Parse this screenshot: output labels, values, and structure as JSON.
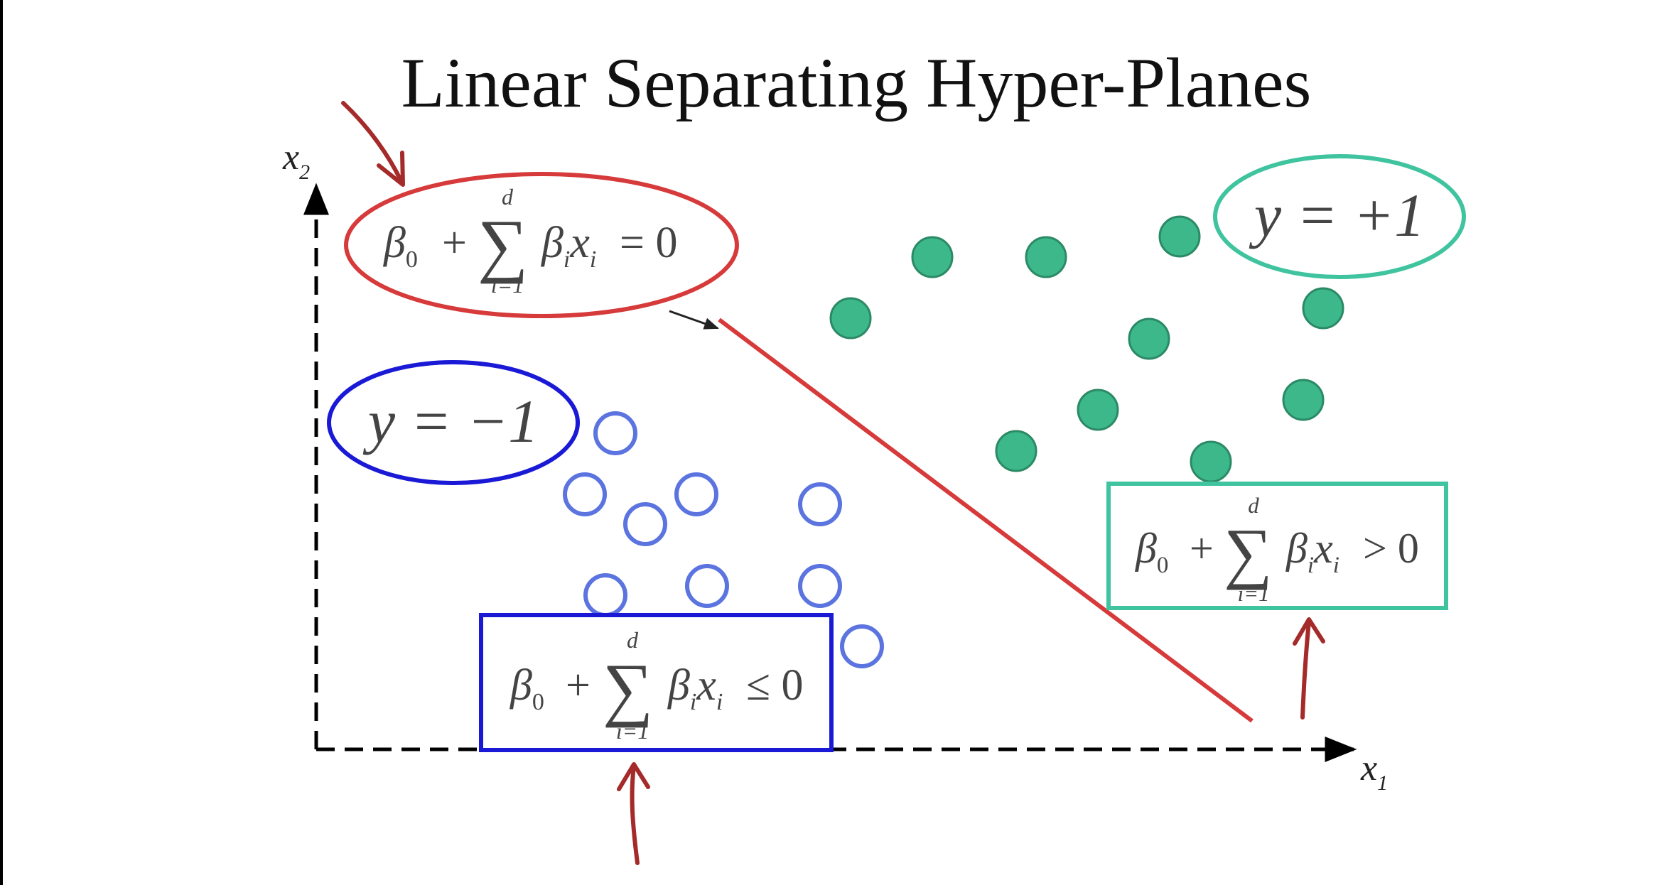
{
  "slide": {
    "title": "Linear Separating Hyper-Planes"
  },
  "axes": {
    "x_label_base": "x",
    "x_label_sub": "1",
    "y_label_base": "x",
    "y_label_sub": "2"
  },
  "hyperplane": {
    "beta": "β",
    "beta_sub0": "0",
    "plus": "+",
    "sum_symbol": "∑",
    "sum_upper": "d",
    "sum_lower": "i=1",
    "beta_i_sub": "i",
    "x": "x",
    "x_sub": "i",
    "relation": "= 0",
    "color": "#d63a3a"
  },
  "class_pos": {
    "label": "y = +1",
    "condition_relation": "> 0",
    "color": "#40c49f",
    "point_fill": "#3db88a",
    "point_stroke": "#2b8a66"
  },
  "class_neg": {
    "label": "y = −1",
    "condition_relation": "≤ 0",
    "color": "#1a1ad6",
    "point_stroke": "#5b74e0"
  },
  "annotations": {
    "arrow_color": "#a52a2a"
  }
}
